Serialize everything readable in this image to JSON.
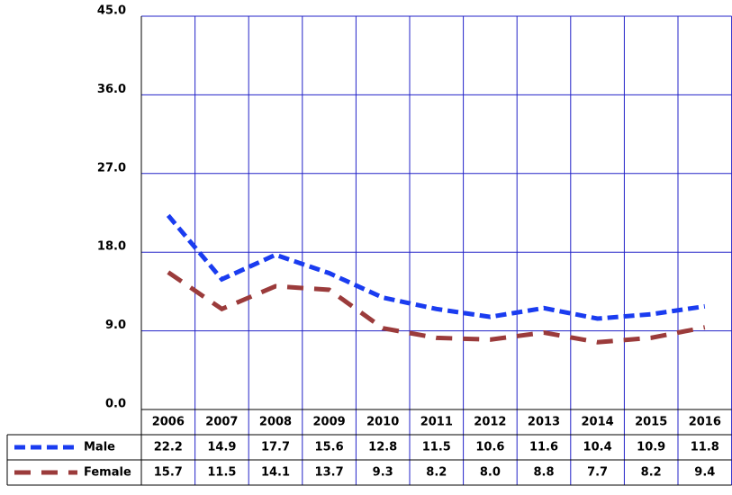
{
  "chart_data": {
    "type": "line",
    "categories": [
      "2006",
      "2007",
      "2008",
      "2009",
      "2010",
      "2011",
      "2012",
      "2013",
      "2014",
      "2015",
      "2016"
    ],
    "series": [
      {
        "name": "Male",
        "color": "#1a3cf0",
        "values": [
          22.2,
          14.9,
          17.7,
          15.6,
          12.8,
          11.5,
          10.6,
          11.6,
          10.4,
          10.9,
          11.8
        ]
      },
      {
        "name": "Female",
        "color": "#9b3b3b",
        "values": [
          15.7,
          11.5,
          14.1,
          13.7,
          9.3,
          8.2,
          8.0,
          8.8,
          7.7,
          8.2,
          9.4
        ],
        "value_labels": [
          "15.7",
          "11.5",
          "14.1",
          "13.7",
          "9.3",
          "8.2",
          "8.0",
          "8.8",
          "7.7",
          "8.2",
          "9.4"
        ]
      }
    ],
    "ylim": [
      0,
      45
    ],
    "yticks": [
      {
        "value": 0,
        "label": "0.0"
      },
      {
        "value": 9,
        "label": "9.0"
      },
      {
        "value": 18,
        "label": "18.0"
      },
      {
        "value": 27,
        "label": "27.0"
      },
      {
        "value": 36,
        "label": "36.0"
      },
      {
        "value": 45,
        "label": "45.0"
      }
    ],
    "grid": true,
    "grid_color": "#2323c8"
  }
}
